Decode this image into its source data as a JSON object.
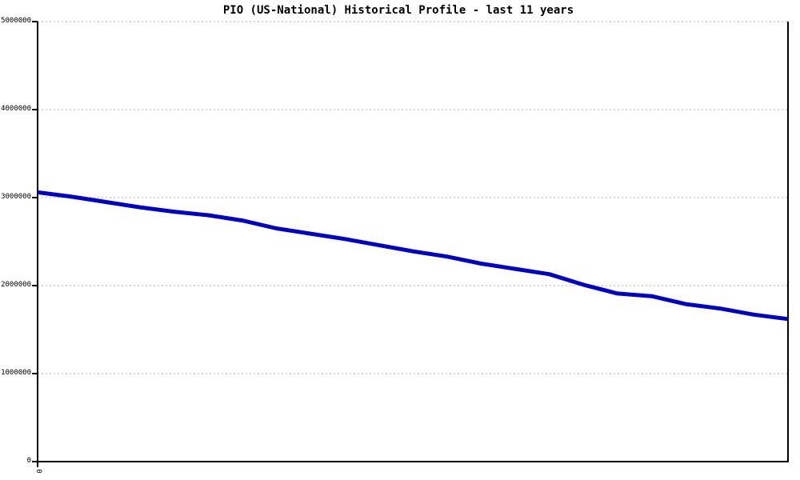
{
  "chart_data": {
    "type": "line",
    "title": "PIO (US-National) Historical Profile - last 11 years",
    "xlabel": "",
    "ylabel": "",
    "legend": "none",
    "grid": "horizontal-dotted",
    "x": [
      0,
      1,
      2,
      3,
      4,
      5,
      6,
      7,
      8,
      9,
      10,
      11,
      12,
      13,
      14,
      15,
      16,
      17,
      18,
      19,
      20,
      21,
      22
    ],
    "values": [
      3060000,
      3010000,
      2950000,
      2890000,
      2840000,
      2800000,
      2740000,
      2650000,
      2590000,
      2530000,
      2460000,
      2390000,
      2330000,
      2250000,
      2190000,
      2130000,
      2010000,
      1910000,
      1880000,
      1790000,
      1740000,
      1670000,
      1620000
    ],
    "ylim": [
      0,
      5000000
    ],
    "yticks": [
      0,
      1000000,
      2000000,
      3000000,
      4000000,
      5000000
    ],
    "ytick_labels": [
      "0",
      "1000000",
      "2000000",
      "3000000",
      "4000000",
      "5000000"
    ],
    "xtick_labels": [
      "0"
    ],
    "line_color": "#0000cc",
    "axis_color": "#000000",
    "grid_color": "#b0b0b0",
    "background_color": "#ffffff"
  }
}
